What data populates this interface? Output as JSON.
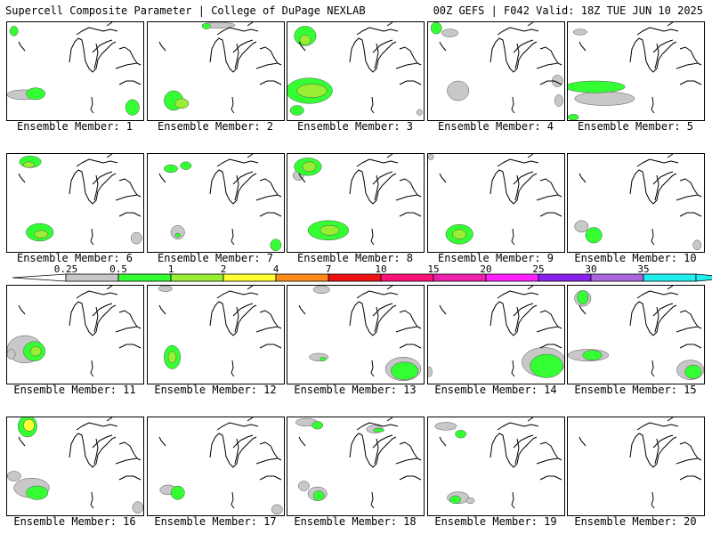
{
  "header": {
    "left": "Supercell Composite Parameter | College of DuPage NEXLAB",
    "right": "00Z GEFS | F042 Valid: 18Z TUE JUN 10 2025"
  },
  "panels": [
    {
      "label": "Ensemble Member: 1",
      "blobs": [
        [
          0.05,
          0.09,
          0.03,
          0.05,
          2
        ],
        [
          0.12,
          0.74,
          0.12,
          0.05,
          1
        ],
        [
          0.21,
          0.73,
          0.07,
          0.06,
          2
        ],
        [
          0.92,
          0.87,
          0.05,
          0.08,
          2
        ]
      ]
    },
    {
      "label": "Ensemble Member: 2",
      "blobs": [
        [
          0.19,
          0.8,
          0.07,
          0.1,
          2
        ],
        [
          0.25,
          0.83,
          0.05,
          0.05,
          3
        ],
        [
          0.52,
          0.03,
          0.12,
          0.03,
          1
        ],
        [
          0.43,
          0.04,
          0.03,
          0.03,
          2
        ]
      ]
    },
    {
      "label": "Ensemble Member: 3",
      "blobs": [
        [
          0.13,
          0.14,
          0.08,
          0.1,
          2
        ],
        [
          0.13,
          0.18,
          0.04,
          0.05,
          3
        ],
        [
          0.16,
          0.7,
          0.17,
          0.13,
          2
        ],
        [
          0.18,
          0.7,
          0.11,
          0.07,
          3
        ],
        [
          0.07,
          0.9,
          0.05,
          0.05,
          2
        ],
        [
          0.97,
          0.92,
          0.02,
          0.03,
          1
        ]
      ]
    },
    {
      "label": "Ensemble Member: 4",
      "blobs": [
        [
          0.06,
          0.06,
          0.04,
          0.06,
          2
        ],
        [
          0.16,
          0.11,
          0.06,
          0.04,
          1
        ],
        [
          0.22,
          0.7,
          0.08,
          0.1,
          1
        ],
        [
          0.95,
          0.6,
          0.04,
          0.06,
          1
        ],
        [
          0.96,
          0.8,
          0.03,
          0.06,
          1
        ]
      ]
    },
    {
      "label": "Ensemble Member: 5",
      "blobs": [
        [
          0.2,
          0.66,
          0.22,
          0.06,
          2
        ],
        [
          0.27,
          0.78,
          0.22,
          0.07,
          1
        ],
        [
          0.09,
          0.1,
          0.05,
          0.03,
          1
        ],
        [
          0.04,
          0.97,
          0.04,
          0.03,
          2
        ]
      ]
    },
    {
      "label": "Ensemble Member: 6",
      "blobs": [
        [
          0.17,
          0.08,
          0.08,
          0.06,
          2
        ],
        [
          0.16,
          0.11,
          0.04,
          0.03,
          3
        ],
        [
          0.24,
          0.8,
          0.1,
          0.09,
          2
        ],
        [
          0.25,
          0.82,
          0.05,
          0.04,
          3
        ],
        [
          0.95,
          0.86,
          0.04,
          0.06,
          1
        ]
      ]
    },
    {
      "label": "Ensemble Member: 7",
      "blobs": [
        [
          0.17,
          0.15,
          0.05,
          0.04,
          2
        ],
        [
          0.28,
          0.12,
          0.04,
          0.04,
          2
        ],
        [
          0.22,
          0.8,
          0.05,
          0.07,
          1
        ],
        [
          0.22,
          0.83,
          0.02,
          0.02,
          2
        ],
        [
          0.94,
          0.93,
          0.04,
          0.06,
          2
        ]
      ]
    },
    {
      "label": "Ensemble Member: 8",
      "blobs": [
        [
          0.15,
          0.13,
          0.1,
          0.09,
          2
        ],
        [
          0.16,
          0.13,
          0.05,
          0.05,
          3
        ],
        [
          0.08,
          0.22,
          0.04,
          0.05,
          1
        ],
        [
          0.3,
          0.78,
          0.15,
          0.1,
          2
        ],
        [
          0.31,
          0.78,
          0.07,
          0.05,
          3
        ]
      ]
    },
    {
      "label": "Ensemble Member: 9",
      "blobs": [
        [
          0.23,
          0.82,
          0.1,
          0.1,
          2
        ],
        [
          0.23,
          0.82,
          0.05,
          0.05,
          3
        ],
        [
          0.02,
          0.03,
          0.02,
          0.03,
          1
        ]
      ]
    },
    {
      "label": "Ensemble Member: 10",
      "blobs": [
        [
          0.1,
          0.74,
          0.05,
          0.06,
          1
        ],
        [
          0.19,
          0.83,
          0.06,
          0.08,
          2
        ],
        [
          0.95,
          0.93,
          0.03,
          0.05,
          1
        ]
      ]
    },
    {
      "label": "Ensemble Member: 11",
      "blobs": [
        [
          0.13,
          0.65,
          0.13,
          0.14,
          1
        ],
        [
          0.2,
          0.67,
          0.08,
          0.1,
          2
        ],
        [
          0.21,
          0.67,
          0.04,
          0.05,
          3
        ],
        [
          0.03,
          0.7,
          0.03,
          0.05,
          1
        ]
      ]
    },
    {
      "label": "Ensemble Member: 12",
      "blobs": [
        [
          0.18,
          0.73,
          0.06,
          0.12,
          2
        ],
        [
          0.18,
          0.73,
          0.03,
          0.06,
          3
        ],
        [
          0.13,
          0.03,
          0.05,
          0.03,
          1
        ]
      ]
    },
    {
      "label": "Ensemble Member: 13",
      "blobs": [
        [
          0.25,
          0.04,
          0.06,
          0.04,
          1
        ],
        [
          0.23,
          0.73,
          0.07,
          0.04,
          1
        ],
        [
          0.26,
          0.75,
          0.02,
          0.02,
          2
        ],
        [
          0.85,
          0.85,
          0.13,
          0.12,
          1
        ],
        [
          0.86,
          0.87,
          0.1,
          0.09,
          2
        ]
      ]
    },
    {
      "label": "Ensemble Member: 14",
      "blobs": [
        [
          0.85,
          0.78,
          0.16,
          0.15,
          1
        ],
        [
          0.87,
          0.82,
          0.12,
          0.12,
          2
        ],
        [
          0.01,
          0.88,
          0.02,
          0.05,
          1
        ]
      ]
    },
    {
      "label": "Ensemble Member: 15",
      "blobs": [
        [
          0.11,
          0.13,
          0.06,
          0.08,
          1
        ],
        [
          0.11,
          0.12,
          0.04,
          0.07,
          2
        ],
        [
          0.15,
          0.71,
          0.15,
          0.06,
          1
        ],
        [
          0.18,
          0.71,
          0.07,
          0.05,
          2
        ],
        [
          0.9,
          0.86,
          0.1,
          0.1,
          1
        ],
        [
          0.92,
          0.88,
          0.06,
          0.07,
          2
        ]
      ]
    },
    {
      "label": "Ensemble Member: 16",
      "blobs": [
        [
          0.15,
          0.09,
          0.07,
          0.11,
          2
        ],
        [
          0.16,
          0.08,
          0.04,
          0.06,
          4
        ],
        [
          0.05,
          0.6,
          0.05,
          0.05,
          1
        ],
        [
          0.18,
          0.72,
          0.13,
          0.1,
          1
        ],
        [
          0.22,
          0.77,
          0.08,
          0.07,
          2
        ],
        [
          0.96,
          0.92,
          0.04,
          0.06,
          1
        ]
      ]
    },
    {
      "label": "Ensemble Member: 17",
      "blobs": [
        [
          0.15,
          0.74,
          0.06,
          0.05,
          1
        ],
        [
          0.22,
          0.77,
          0.05,
          0.07,
          2
        ],
        [
          0.95,
          0.94,
          0.04,
          0.05,
          1
        ]
      ]
    },
    {
      "label": "Ensemble Member: 18",
      "blobs": [
        [
          0.14,
          0.05,
          0.08,
          0.04,
          1
        ],
        [
          0.22,
          0.08,
          0.04,
          0.04,
          2
        ],
        [
          0.12,
          0.7,
          0.04,
          0.05,
          1
        ],
        [
          0.22,
          0.78,
          0.07,
          0.07,
          1
        ],
        [
          0.23,
          0.8,
          0.04,
          0.05,
          2
        ],
        [
          0.64,
          0.12,
          0.06,
          0.04,
          1
        ],
        [
          0.67,
          0.13,
          0.04,
          0.02,
          2
        ]
      ]
    },
    {
      "label": "Ensemble Member: 19",
      "blobs": [
        [
          0.13,
          0.09,
          0.08,
          0.04,
          1
        ],
        [
          0.24,
          0.17,
          0.04,
          0.04,
          2
        ],
        [
          0.22,
          0.82,
          0.08,
          0.06,
          1
        ],
        [
          0.2,
          0.84,
          0.04,
          0.04,
          2
        ],
        [
          0.31,
          0.85,
          0.03,
          0.03,
          1
        ]
      ]
    },
    {
      "label": "Ensemble Member: 20",
      "blobs": []
    }
  ],
  "colorbar": {
    "labels": [
      "0.25",
      "0.5",
      "1",
      "2",
      "4",
      "7",
      "10",
      "15",
      "20",
      "25",
      "30",
      "35"
    ],
    "colors": [
      "#c8c8c8",
      "#33ff33",
      "#99ee33",
      "#ffff33",
      "#ff8c1a",
      "#ee1111",
      "#ff1177",
      "#ee22aa",
      "#ff22ff",
      "#8822ee",
      "#aa66dd",
      "#22eeee"
    ],
    "tip_color": "#22eeee"
  },
  "fill_colors": [
    "#c8c8c8",
    "#33ff33",
    "#99ee33",
    "#ffff33",
    "#ff8c1a"
  ]
}
